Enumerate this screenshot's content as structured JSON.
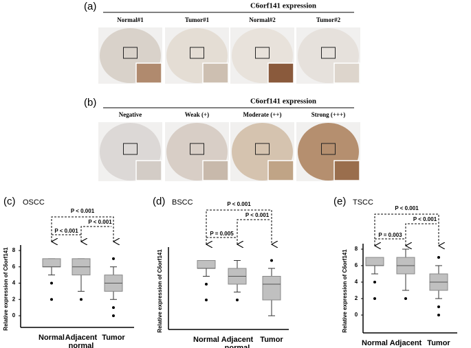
{
  "panels": [
    {
      "label": "(a)",
      "title": "C6orf141 expression",
      "columns": [
        "Normal#1",
        "Tumor#1",
        "Normal#2",
        "Tumor#2"
      ]
    },
    {
      "label": "(b)",
      "title": "C6orf141 expression",
      "columns": [
        "Negative",
        "Weak (+)",
        "Moderate (++)",
        "Strong (+++)"
      ]
    }
  ],
  "chart_data": [
    {
      "type": "box",
      "panel_label": "(c)",
      "title": "OSCC",
      "y_label": "Relative expression of C6orf141",
      "categories": [
        "Normal",
        "Adjacent normal",
        "Tumor"
      ],
      "color": "#c0c0c0",
      "boxes": [
        {
          "min": 5,
          "q1": 6,
          "median": 6,
          "q3": 7,
          "max": 7,
          "outliers": [
            4,
            2
          ]
        },
        {
          "min": 3,
          "q1": 5,
          "median": 6,
          "q3": 7,
          "max": 7,
          "outliers": [
            2
          ]
        },
        {
          "min": 2,
          "q1": 3,
          "median": 4,
          "q3": 5,
          "max": 6,
          "outliers": [
            7,
            1,
            0
          ]
        }
      ],
      "ylim": [
        0,
        8
      ],
      "yticks": [
        0,
        2,
        4,
        6,
        8
      ],
      "annotations": [
        "P < 0.001",
        "P < 0.001",
        "P < 0.001"
      ]
    },
    {
      "type": "box",
      "panel_label": "(d)",
      "title": "BSCC",
      "y_label": "Relative expression of C6orf141",
      "categories": [
        "Normal",
        "Adjacent normal",
        "Tumor"
      ],
      "color": "#c0c0c0",
      "boxes": [
        {
          "min": 5,
          "q1": 6,
          "median": 6,
          "q3": 7,
          "max": 7,
          "outliers": [
            4,
            2
          ]
        },
        {
          "min": 3,
          "q1": 4,
          "median": 5,
          "q3": 6,
          "max": 7,
          "outliers": [
            2
          ]
        },
        {
          "min": 0,
          "q1": 2,
          "median": 4,
          "q3": 5,
          "max": 6,
          "outliers": [
            7
          ]
        }
      ],
      "ylim": [
        0,
        8
      ],
      "annotations": [
        "P < 0.001",
        "P = 0.005",
        "P < 0.001"
      ]
    },
    {
      "type": "box",
      "panel_label": "(e)",
      "title": "TSCC",
      "y_label": "Relative expression of C6orf141",
      "categories": [
        "Normal",
        "Adjacent normal",
        "Tumor"
      ],
      "color": "#c0c0c0",
      "boxes": [
        {
          "min": 5,
          "q1": 6,
          "median": 6,
          "q3": 7,
          "max": 7,
          "outliers": [
            4,
            2
          ]
        },
        {
          "min": 3,
          "q1": 5,
          "median": 6,
          "q3": 7,
          "max": 8,
          "outliers": [
            2
          ]
        },
        {
          "min": 2,
          "q1": 3,
          "median": 4,
          "q3": 5,
          "max": 6,
          "outliers": [
            7,
            1,
            0
          ]
        }
      ],
      "ylim": [
        0,
        8
      ],
      "yticks": [
        0,
        2,
        4,
        6,
        8
      ],
      "annotations": [
        "P < 0.001",
        "P = 0.003",
        "P < 0.001"
      ]
    }
  ]
}
